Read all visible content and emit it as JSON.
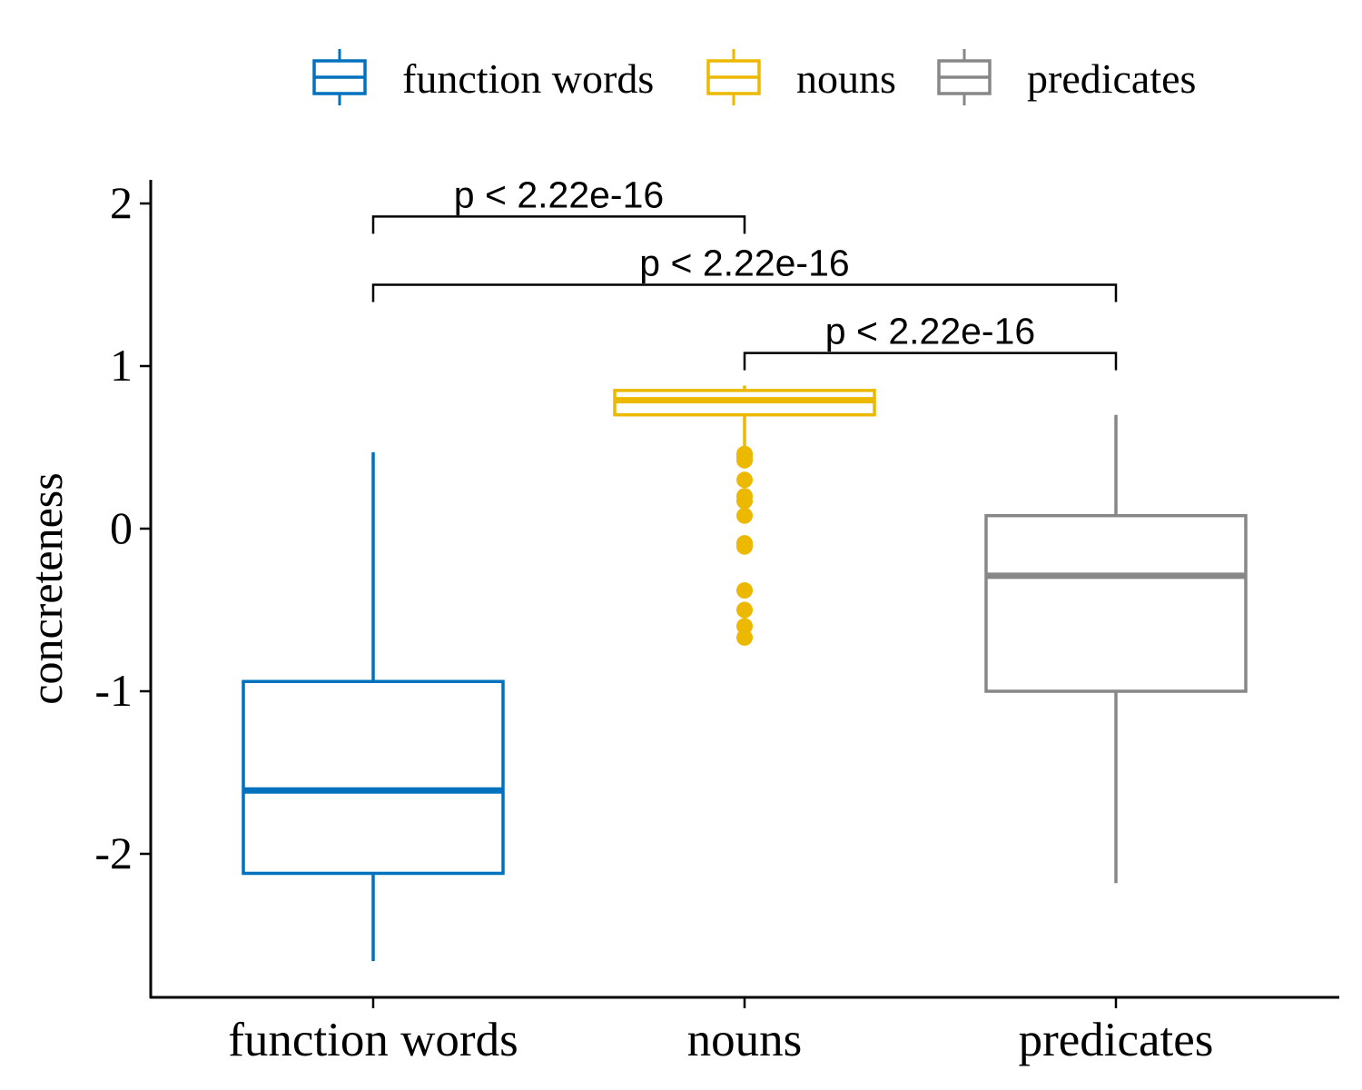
{
  "chart_data": {
    "type": "boxplot",
    "title": "",
    "xlabel": "",
    "ylabel": "concreteness",
    "ylim": [
      -2.9,
      2.15
    ],
    "yticks": [
      2,
      1,
      0,
      -1,
      -2
    ],
    "ytick_labels": [
      "2",
      "1",
      "0",
      "-1",
      "-2"
    ],
    "categories": [
      "function words",
      "nouns",
      "predicates"
    ],
    "legend": {
      "position": "top",
      "entries": [
        "function words",
        "nouns",
        "predicates"
      ]
    },
    "colors": {
      "function words": "#0072BD",
      "nouns": "#EDB800",
      "predicates": "#878787"
    },
    "series": [
      {
        "name": "function words",
        "whisker_low": -2.66,
        "q1": -2.12,
        "median": -1.61,
        "q3": -0.94,
        "whisker_high": 0.47,
        "outliers": []
      },
      {
        "name": "nouns",
        "whisker_low": 0.51,
        "q1": 0.7,
        "median": 0.79,
        "q3": 0.85,
        "whisker_high": 0.88,
        "outliers": [
          0.46,
          0.44,
          0.42,
          0.3,
          0.2,
          0.17,
          0.08,
          -0.09,
          -0.11,
          -0.38,
          -0.5,
          -0.6,
          -0.67
        ]
      },
      {
        "name": "predicates",
        "whisker_low": -2.18,
        "q1": -1.0,
        "median": -0.29,
        "q3": 0.08,
        "whisker_high": 0.7,
        "outliers": []
      }
    ],
    "comparisons": [
      {
        "groups": [
          "function words",
          "nouns"
        ],
        "label": "p < 2.22e-16",
        "y": 1.92
      },
      {
        "groups": [
          "function words",
          "predicates"
        ],
        "label": "p < 2.22e-16",
        "y": 1.5
      },
      {
        "groups": [
          "nouns",
          "predicates"
        ],
        "label": "p < 2.22e-16",
        "y": 1.08
      }
    ]
  }
}
